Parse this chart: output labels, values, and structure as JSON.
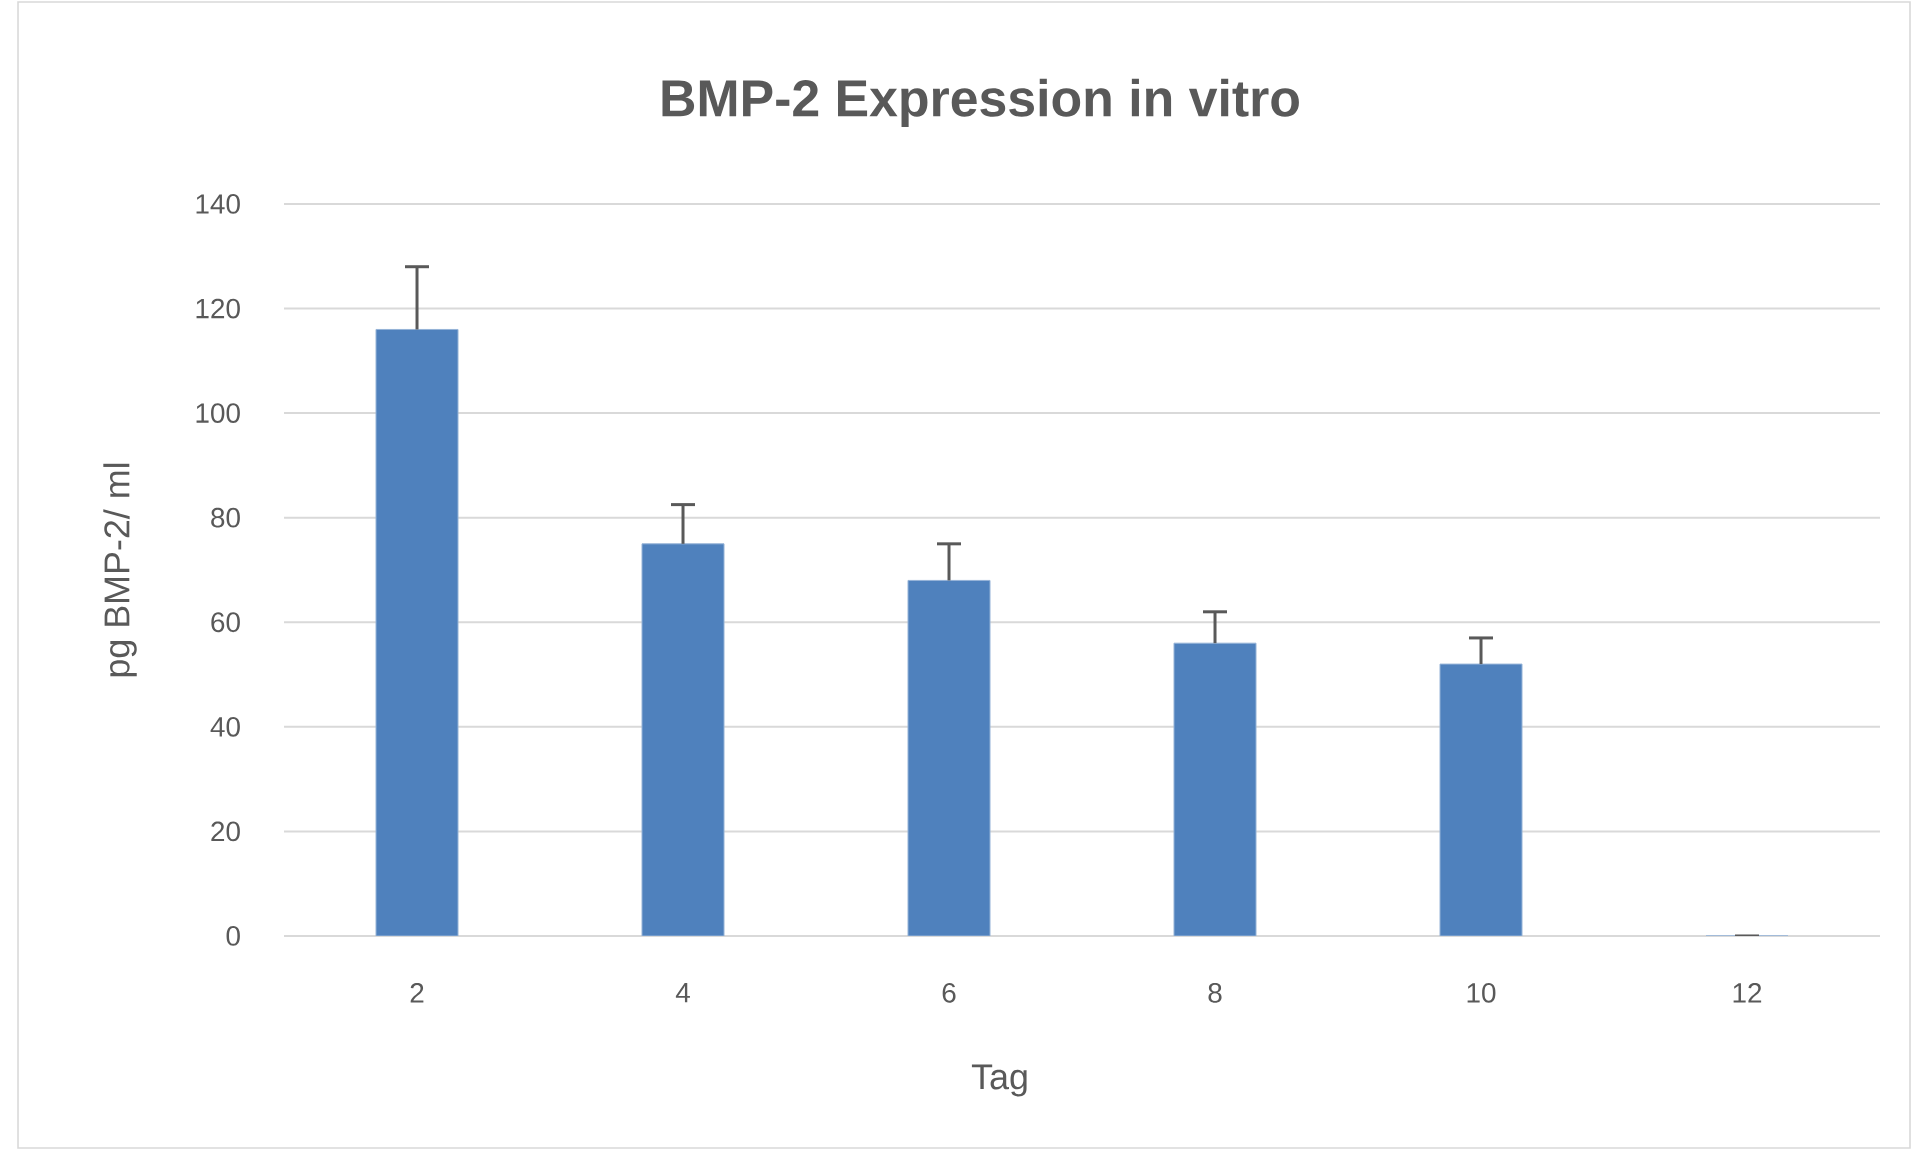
{
  "chart_data": {
    "type": "bar",
    "title": "BMP-2 Expression in vitro",
    "xlabel": "Tag",
    "ylabel": "pg BMP-2/ ml",
    "categories": [
      "2",
      "4",
      "6",
      "8",
      "10",
      "12"
    ],
    "values": [
      116,
      75,
      68,
      56,
      52,
      0
    ],
    "errors": [
      [
        116,
        128
      ],
      [
        75,
        82.5
      ],
      [
        68,
        75
      ],
      [
        56,
        62
      ],
      [
        52,
        57
      ],
      null
    ],
    "color": "#4f81bd",
    "ylim": [
      0,
      140
    ],
    "yticks": [
      0,
      20,
      40,
      60,
      80,
      100,
      120,
      140
    ],
    "grid": "y"
  }
}
